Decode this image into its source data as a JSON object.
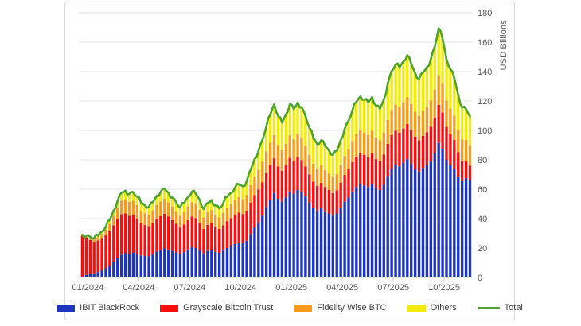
{
  "chart_data": {
    "type": "bar",
    "subtype": "stacked-bars-with-total-line",
    "title": "",
    "xlabel": "",
    "ylabel": "USD Billions",
    "ylim": [
      0,
      180
    ],
    "ytick_step": 20,
    "yticks": [
      0,
      20,
      40,
      60,
      80,
      100,
      120,
      140,
      160,
      180
    ],
    "xtick_labels": [
      "01/2024",
      "04/2024",
      "07/2024",
      "10/2024",
      "01/2025",
      "04/2025",
      "07/2025",
      "10/2025"
    ],
    "x_unit": "weekly",
    "grid": true,
    "legend_position": "bottom",
    "colors": {
      "ibit": "#1e35be",
      "grayscale": "#fb0d0d",
      "fidelity": "#f79b1b",
      "others": "#f2ea0a",
      "total": "#4da32f",
      "gridline": "#e3e3e3",
      "axis_text": "#595959",
      "legend_text": "#404040",
      "tick": "#c6c6c6"
    },
    "series": [
      {
        "name": "IBIT BlackRock",
        "type": "bar",
        "color": "#1e35be",
        "values": [
          0.8,
          1.7,
          2.5,
          2.8,
          3.6,
          4.8,
          6.2,
          8.0,
          10.5,
          13.0,
          15.5,
          16.5,
          16.0,
          17.0,
          16.2,
          15.0,
          14.6,
          14.4,
          15.6,
          17.5,
          18.8,
          19.8,
          19.0,
          18.0,
          17.0,
          16.0,
          17.2,
          19.0,
          20.5,
          20.0,
          18.5,
          16.4,
          18.0,
          18.8,
          17.5,
          16.8,
          18.3,
          20.0,
          21.3,
          22.8,
          23.8,
          23.3,
          25.0,
          29.5,
          34.0,
          37.5,
          42.0,
          48.0,
          53.0,
          57.5,
          53.5,
          51.5,
          54.5,
          58.5,
          57.0,
          59.5,
          58.0,
          55.0,
          51.0,
          47.5,
          45.5,
          47.0,
          45.0,
          43.5,
          42.0,
          43.5,
          47.5,
          51.5,
          54.5,
          58.5,
          61.5,
          63.5,
          62.5,
          61.5,
          63.5,
          60.5,
          59.5,
          63.0,
          69.0,
          74.0,
          76.5,
          75.5,
          78.0,
          80.5,
          77.5,
          74.0,
          72.0,
          74.5,
          76.5,
          79.5,
          84.5,
          91.5,
          87.5,
          80.0,
          76.5,
          74.0,
          68.5,
          65.5,
          67.5,
          66.5
        ]
      },
      {
        "name": "Grayscale Bitcoin Trust",
        "type": "bar",
        "color": "#fb0d0d",
        "values": [
          27.5,
          25.5,
          23.0,
          21.5,
          21.5,
          22.0,
          22.5,
          23.5,
          25.0,
          26.5,
          27.5,
          27.0,
          26.0,
          25.5,
          24.0,
          22.0,
          21.0,
          20.5,
          21.5,
          22.5,
          23.0,
          23.5,
          22.5,
          21.0,
          19.5,
          18.0,
          18.8,
          20.0,
          21.0,
          20.3,
          18.8,
          16.6,
          17.8,
          18.3,
          17.0,
          16.2,
          17.2,
          18.3,
          19.0,
          19.8,
          20.3,
          19.8,
          20.5,
          21.5,
          22.0,
          22.3,
          22.8,
          23.0,
          23.3,
          23.5,
          22.0,
          21.0,
          21.8,
          22.8,
          22.0,
          22.5,
          21.8,
          20.5,
          19.0,
          17.6,
          16.8,
          17.3,
          16.5,
          16.0,
          15.4,
          15.8,
          17.0,
          18.2,
          19.0,
          20.0,
          20.8,
          21.3,
          20.9,
          20.5,
          21.0,
          20.0,
          19.6,
          20.5,
          21.8,
          22.8,
          23.3,
          22.9,
          23.3,
          23.8,
          22.8,
          21.8,
          21.2,
          21.8,
          22.3,
          23.0,
          24.2,
          25.8,
          24.6,
          22.4,
          21.3,
          19.5,
          16.8,
          14.0,
          11.5,
          9.5
        ]
      },
      {
        "name": "Fidelity Wise BTC",
        "type": "bar",
        "color": "#f79b1b",
        "values": [
          0.4,
          0.9,
          1.4,
          1.6,
          2.2,
          3.0,
          3.9,
          5.0,
          6.5,
          8.0,
          9.3,
          9.7,
          9.4,
          9.6,
          9.1,
          8.4,
          8.1,
          8.0,
          8.6,
          9.4,
          9.9,
          10.2,
          9.7,
          9.2,
          8.6,
          8.0,
          8.5,
          9.2,
          9.8,
          9.5,
          8.8,
          7.8,
          8.5,
          8.8,
          8.2,
          7.9,
          8.5,
          9.2,
          9.6,
          10.2,
          10.5,
          10.3,
          10.8,
          11.8,
          12.6,
          13.2,
          14.0,
          14.8,
          15.4,
          15.8,
          14.7,
          14.1,
          14.7,
          15.4,
          15.0,
          15.4,
          15.0,
          14.2,
          13.2,
          12.3,
          11.8,
          12.1,
          11.6,
          11.2,
          10.8,
          11.1,
          12.0,
          12.9,
          13.5,
          14.3,
          15.0,
          15.4,
          15.1,
          14.9,
          15.3,
          14.6,
          14.3,
          15.1,
          16.3,
          17.3,
          17.8,
          17.5,
          18.0,
          18.4,
          17.7,
          17.0,
          16.5,
          17.0,
          17.4,
          18.0,
          19.0,
          20.3,
          19.5,
          17.9,
          17.1,
          16.4,
          15.2,
          14.3,
          14.5,
          14.0
        ]
      },
      {
        "name": "Others",
        "type": "bar",
        "color": "#f2ea0a",
        "values": [
          0.3,
          0.5,
          0.7,
          0.8,
          1.1,
          1.5,
          2.0,
          2.6,
          3.5,
          4.5,
          5.5,
          5.8,
          5.6,
          5.9,
          5.7,
          5.3,
          5.2,
          5.1,
          5.5,
          6.1,
          6.5,
          6.8,
          6.5,
          6.2,
          5.9,
          5.5,
          6.0,
          6.6,
          7.1,
          7.0,
          6.5,
          5.8,
          6.4,
          6.7,
          6.3,
          6.1,
          6.6,
          7.3,
          7.7,
          8.3,
          8.7,
          8.6,
          9.2,
          10.7,
          12.0,
          13.2,
          14.8,
          17.0,
          19.0,
          21.0,
          19.5,
          18.7,
          19.8,
          21.2,
          20.6,
          21.5,
          21.0,
          19.9,
          18.5,
          17.2,
          16.5,
          17.0,
          16.3,
          15.8,
          15.2,
          15.7,
          17.1,
          18.5,
          19.6,
          21.0,
          22.0,
          22.8,
          22.4,
          22.1,
          22.8,
          21.7,
          21.4,
          22.6,
          24.6,
          26.3,
          27.2,
          26.8,
          27.6,
          28.4,
          27.3,
          26.1,
          25.4,
          26.2,
          26.9,
          27.9,
          29.5,
          31.8,
          30.5,
          28.0,
          26.8,
          25.6,
          23.5,
          21.7,
          21.0,
          19.5
        ]
      },
      {
        "name": "Total",
        "type": "line",
        "color": "#4da32f",
        "derived": "sum-of-bar-series"
      }
    ]
  },
  "legend": {
    "items": [
      {
        "label": "IBIT BlackRock"
      },
      {
        "label": "Grayscale Bitcoin Trust"
      },
      {
        "label": "Fidelity Wise BTC"
      },
      {
        "label": "Others"
      },
      {
        "label": "Total"
      }
    ]
  }
}
